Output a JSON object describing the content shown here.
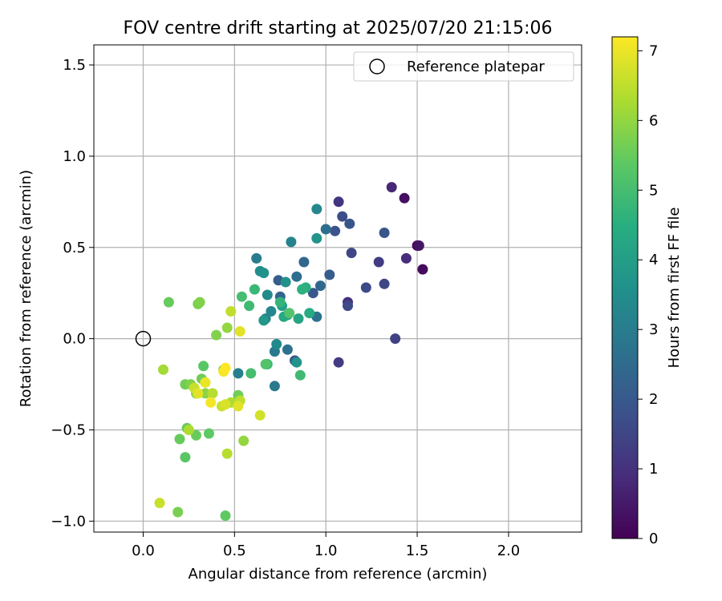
{
  "chart_data": {
    "type": "scatter",
    "title": "FOV centre drift starting at 2025/07/20 21:15:06",
    "xlabel": "Angular distance from reference (arcmin)",
    "ylabel": "Rotation from reference (arcmin)",
    "xlim": [
      -0.27,
      2.4
    ],
    "ylim": [
      -1.06,
      1.61
    ],
    "xticks": [
      0.0,
      0.5,
      1.0,
      1.5,
      2.0
    ],
    "xtick_labels": [
      "0.0",
      "0.5",
      "1.0",
      "1.5",
      "2.0"
    ],
    "yticks": [
      -1.0,
      -0.5,
      0.0,
      0.5,
      1.0,
      1.5
    ],
    "ytick_labels": [
      "−1.0",
      "−0.5",
      "0.0",
      "0.5",
      "1.0",
      "1.5"
    ],
    "grid": true,
    "legend": {
      "placement": "top-right",
      "entries": [
        "Reference platepar"
      ]
    },
    "reference_point": {
      "x": 0.0,
      "y": 0.0
    },
    "colorbar": {
      "label": "Hours from first FF file",
      "min": 0,
      "max": 7.2,
      "ticks": [
        0,
        1,
        2,
        3,
        4,
        5,
        6,
        7
      ],
      "tick_labels": [
        "0",
        "1",
        "2",
        "3",
        "4",
        "5",
        "6",
        "7"
      ],
      "colormap": "viridis"
    },
    "points": [
      [
        1.5,
        0.51,
        0.1
      ],
      [
        1.53,
        0.38,
        0.2
      ],
      [
        1.43,
        0.77,
        0.3
      ],
      [
        1.51,
        0.51,
        0.4
      ],
      [
        1.36,
        0.83,
        0.8
      ],
      [
        1.44,
        0.44,
        0.9
      ],
      [
        1.12,
        0.2,
        1.0
      ],
      [
        1.07,
        0.75,
        1.1
      ],
      [
        1.29,
        0.42,
        1.3
      ],
      [
        1.38,
        0.0,
        1.4
      ],
      [
        1.07,
        -0.13,
        1.3
      ],
      [
        1.14,
        0.47,
        1.5
      ],
      [
        1.32,
        0.3,
        1.5
      ],
      [
        1.22,
        0.28,
        1.6
      ],
      [
        1.12,
        0.18,
        1.6
      ],
      [
        1.09,
        0.67,
        1.7
      ],
      [
        1.05,
        0.59,
        1.8
      ],
      [
        1.32,
        0.58,
        1.9
      ],
      [
        1.13,
        0.63,
        1.9
      ],
      [
        0.93,
        0.25,
        2.0
      ],
      [
        0.83,
        -0.12,
        2.0
      ],
      [
        1.02,
        0.35,
        2.1
      ],
      [
        0.74,
        0.32,
        2.1
      ],
      [
        0.75,
        0.23,
        2.3
      ],
      [
        0.88,
        0.42,
        2.4
      ],
      [
        0.97,
        0.29,
        2.4
      ],
      [
        0.84,
        0.34,
        2.6
      ],
      [
        1.0,
        0.6,
        2.6
      ],
      [
        0.95,
        0.12,
        2.7
      ],
      [
        0.79,
        -0.06,
        2.7
      ],
      [
        0.72,
        -0.26,
        2.9
      ],
      [
        0.72,
        -0.07,
        2.9
      ],
      [
        0.62,
        0.44,
        3.0
      ],
      [
        0.52,
        -0.19,
        3.1
      ],
      [
        0.67,
        0.11,
        3.2
      ],
      [
        0.81,
        0.53,
        3.2
      ],
      [
        0.95,
        0.71,
        3.3
      ],
      [
        0.7,
        0.15,
        3.3
      ],
      [
        0.68,
        0.24,
        3.4
      ],
      [
        0.73,
        -0.03,
        3.4
      ],
      [
        0.64,
        0.37,
        3.5
      ],
      [
        0.66,
        0.36,
        3.6
      ],
      [
        0.78,
        0.31,
        3.6
      ],
      [
        0.95,
        0.55,
        3.7
      ],
      [
        0.84,
        -0.13,
        3.7
      ],
      [
        0.66,
        0.1,
        3.8
      ],
      [
        0.76,
        0.18,
        4.0
      ],
      [
        0.79,
        0.13,
        4.1
      ],
      [
        0.85,
        0.11,
        4.2
      ],
      [
        0.77,
        0.12,
        4.3
      ],
      [
        0.91,
        0.14,
        4.4
      ],
      [
        0.89,
        0.28,
        4.5
      ],
      [
        0.87,
        0.27,
        4.6
      ],
      [
        0.75,
        0.2,
        4.7
      ],
      [
        0.68,
        -0.14,
        4.8
      ],
      [
        0.61,
        0.27,
        4.8
      ],
      [
        0.58,
        0.18,
        4.9
      ],
      [
        0.86,
        -0.2,
        4.9
      ],
      [
        0.54,
        0.23,
        5.0
      ],
      [
        0.59,
        -0.19,
        5.0
      ],
      [
        0.8,
        0.14,
        5.2
      ],
      [
        0.67,
        -0.14,
        5.2
      ],
      [
        0.33,
        -0.15,
        5.3
      ],
      [
        0.23,
        -0.65,
        5.3
      ],
      [
        0.45,
        -0.97,
        5.4
      ],
      [
        0.36,
        -0.52,
        5.4
      ],
      [
        0.24,
        -0.49,
        5.5
      ],
      [
        0.2,
        -0.55,
        5.5
      ],
      [
        0.14,
        0.2,
        5.5
      ],
      [
        0.29,
        -0.53,
        5.5
      ],
      [
        0.23,
        -0.25,
        5.6
      ],
      [
        0.32,
        -0.22,
        5.6
      ],
      [
        0.52,
        -0.31,
        5.6
      ],
      [
        0.44,
        -0.17,
        5.6
      ],
      [
        0.19,
        -0.95,
        5.7
      ],
      [
        0.3,
        0.19,
        5.7
      ],
      [
        0.31,
        0.2,
        5.8
      ],
      [
        0.26,
        -0.25,
        5.8
      ],
      [
        0.4,
        0.02,
        5.8
      ],
      [
        0.29,
        -0.3,
        5.9
      ],
      [
        0.34,
        -0.3,
        5.9
      ],
      [
        0.55,
        -0.56,
        6.0
      ],
      [
        0.46,
        0.06,
        6.0
      ],
      [
        0.34,
        -0.24,
        6.1
      ],
      [
        0.11,
        -0.17,
        6.2
      ],
      [
        0.25,
        -0.5,
        6.3
      ],
      [
        0.48,
        -0.35,
        6.3
      ],
      [
        0.46,
        -0.63,
        6.4
      ],
      [
        0.38,
        -0.3,
        6.4
      ],
      [
        0.48,
        0.15,
        6.5
      ],
      [
        0.53,
        -0.34,
        6.5
      ],
      [
        0.43,
        -0.37,
        6.6
      ],
      [
        0.09,
        -0.9,
        6.6
      ],
      [
        0.28,
        -0.27,
        6.6
      ],
      [
        0.64,
        -0.42,
        6.7
      ],
      [
        0.45,
        -0.36,
        6.8
      ],
      [
        0.52,
        -0.37,
        6.9
      ],
      [
        0.53,
        0.04,
        6.9
      ],
      [
        0.3,
        -0.3,
        6.9
      ],
      [
        0.34,
        -0.24,
        7.0
      ],
      [
        0.44,
        -0.18,
        7.1
      ],
      [
        0.37,
        -0.35,
        7.1
      ],
      [
        0.45,
        -0.16,
        7.2
      ]
    ]
  }
}
